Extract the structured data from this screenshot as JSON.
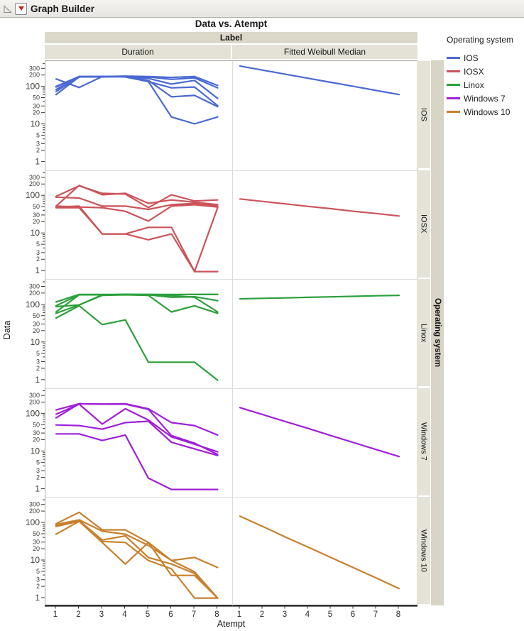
{
  "window": {
    "title": "Graph Builder"
  },
  "icons": {
    "disclosure": "open-outline-triangle-icon",
    "menu": "red-triangle-menu-icon"
  },
  "chart": {
    "title": "Data vs. Atempt",
    "xlabel": "Atempt",
    "ylabel": "Data",
    "column_group": "Label",
    "column_headers": [
      "Duration",
      "Fitted Weibull Median"
    ],
    "row_group": "Operating system",
    "row_headers": [
      "IOS",
      "IOSX",
      "Linox",
      "Windows 7",
      "Windows 10"
    ]
  },
  "legend": {
    "title": "Operating system",
    "entries": [
      {
        "label": "IOS",
        "color": "#4a69d2"
      },
      {
        "label": "IOSX",
        "color": "#cc545a"
      },
      {
        "label": "Linox",
        "color": "#2ca03c"
      },
      {
        "label": "Windows 7",
        "color": "#a11eda"
      },
      {
        "label": "Windows 10",
        "color": "#c8802d"
      }
    ]
  },
  "chart_data": {
    "type": "line",
    "x": [
      1,
      2,
      3,
      4,
      5,
      6,
      7,
      8
    ],
    "x_tick_labels": [
      "1",
      "2",
      "3",
      "4",
      "5",
      "6",
      "7",
      "8"
    ],
    "xlabel": "Atempt",
    "ylabel": "Data",
    "yscale": "log",
    "ylim": [
      0.8,
      500
    ],
    "y_ticks_labeled": [
      300,
      200,
      100,
      50,
      30,
      20,
      10,
      5,
      3,
      2,
      1
    ],
    "y_ticks_major": [
      100,
      10,
      1
    ],
    "y_ticks_minor_unlabeled": [
      400,
      90,
      80,
      70,
      60,
      40,
      9,
      8,
      7,
      6,
      4
    ],
    "columns": [
      "Duration",
      "Fitted Weibull Median"
    ],
    "legend_title": "Operating system",
    "panels": [
      {
        "row": "IOS",
        "color": "#4a69d2",
        "duration": [
          [
            164,
            97,
            190,
            195,
            190,
            180,
            190,
            110
          ],
          [
            104,
            190,
            190,
            190,
            185,
            160,
            175,
            95
          ],
          [
            86,
            185,
            185,
            190,
            170,
            120,
            150,
            50
          ],
          [
            76,
            190,
            190,
            185,
            140,
            95,
            100,
            32
          ],
          [
            63,
            185,
            188,
            190,
            150,
            55,
            60,
            30
          ],
          [
            100,
            190,
            190,
            190,
            140,
            16,
            10.5,
            16
          ]
        ],
        "fitted": [
          [
            360,
            281,
            219,
            171,
            133,
            104,
            81,
            63
          ]
        ]
      },
      {
        "row": "IOSX",
        "color": "#cc545a",
        "duration": [
          [
            100,
            190,
            120,
            115,
            50,
            110,
            75,
            80
          ],
          [
            55,
            195,
            110,
            120,
            65,
            80,
            70,
            60
          ],
          [
            95,
            90,
            55,
            55,
            45,
            60,
            65,
            55
          ],
          [
            55,
            52,
            50,
            40,
            22,
            55,
            60,
            52
          ],
          [
            52,
            55,
            10,
            10,
            15,
            15,
            1,
            50
          ],
          [
            50,
            50,
            10,
            10,
            7,
            10,
            1,
            1
          ]
        ],
        "fitted": [
          [
            85,
            73,
            63,
            54,
            47,
            40,
            35,
            30
          ]
        ]
      },
      {
        "row": "Linox",
        "color": "#2ca03c",
        "duration": [
          [
            120,
            190,
            190,
            190,
            190,
            190,
            190,
            190
          ],
          [
            95,
            185,
            185,
            190,
            185,
            160,
            165,
            130
          ],
          [
            90,
            100,
            180,
            185,
            180,
            65,
            95,
            60
          ],
          [
            65,
            185,
            185,
            190,
            185,
            175,
            160,
            65
          ],
          [
            60,
            100,
            185,
            190,
            190,
            185,
            190,
            190
          ],
          [
            45,
            95,
            30,
            40,
            3,
            3,
            3,
            1
          ]
        ],
        "fitted": [
          [
            145,
            150,
            154,
            159,
            164,
            169,
            175,
            180
          ]
        ]
      },
      {
        "row": "Windows 7",
        "color": "#a11eda",
        "duration": [
          [
            130,
            190,
            185,
            190,
            140,
            60,
            50,
            28
          ],
          [
            100,
            185,
            55,
            140,
            70,
            25,
            16,
            10
          ],
          [
            80,
            190,
            185,
            185,
            135,
            27,
            17,
            8.5
          ],
          [
            52,
            50,
            40,
            60,
            65,
            18,
            12,
            8
          ],
          [
            30,
            30,
            20,
            28,
            2,
            1,
            1,
            1
          ]
        ],
        "fitted": [
          [
            150,
            98,
            64,
            42,
            27,
            17.7,
            11.5,
            7.5
          ]
        ]
      },
      {
        "row": "Windows 10",
        "color": "#c8802d",
        "duration": [
          [
            95,
            190,
            65,
            65,
            30,
            10,
            12,
            6.5
          ],
          [
            90,
            120,
            60,
            50,
            25,
            10,
            5,
            1
          ],
          [
            85,
            115,
            35,
            45,
            12,
            8,
            4.5,
            1
          ],
          [
            80,
            110,
            32,
            30,
            10,
            6,
            1,
            1
          ],
          [
            50,
            110,
            30,
            8,
            30,
            4,
            4,
            1
          ]
        ],
        "fitted": [
          [
            150,
            80,
            42,
            22.5,
            12,
            6.4,
            3.4,
            1.8
          ]
        ]
      }
    ]
  }
}
